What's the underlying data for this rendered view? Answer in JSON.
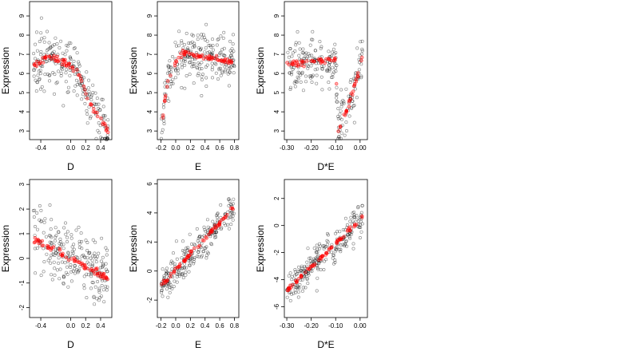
{
  "chart_data": [
    {
      "type": "scatter",
      "xlabel": "D",
      "ylabel": "Expression",
      "xlim": [
        -0.55,
        0.55
      ],
      "ylim": [
        2.55,
        9.75
      ],
      "xticks": [
        -0.4,
        0.0,
        0.2,
        0.4
      ],
      "xtick_labels": [
        "-0.4",
        "0.0",
        "0.2",
        "0.4"
      ],
      "yticks": [
        3,
        4,
        5,
        6,
        7,
        8,
        9
      ],
      "ytick_labels": [
        "3",
        "4",
        "5",
        "6",
        "7",
        "8",
        "9"
      ],
      "observed_color": "#000000",
      "fitted_color": "#ff0000",
      "trend": {
        "kind": "piecewise",
        "knots": [
          [
            -0.5,
            6.4
          ],
          [
            -0.3,
            6.9
          ],
          [
            -0.1,
            6.6
          ],
          [
            0.1,
            6.1
          ],
          [
            0.2,
            5.0
          ],
          [
            0.3,
            4.2
          ],
          [
            0.4,
            3.6
          ],
          [
            0.5,
            3.0
          ]
        ],
        "noise": 0.9
      }
    },
    {
      "type": "scatter",
      "xlabel": "E",
      "ylabel": "Expression",
      "xlim": [
        -0.25,
        0.86
      ],
      "ylim": [
        2.55,
        9.75
      ],
      "xticks": [
        -0.2,
        0.0,
        0.2,
        0.4,
        0.6,
        0.8
      ],
      "xtick_labels": [
        "-0.2",
        "0.0",
        "0.2",
        "0.4",
        "0.6",
        "0.8"
      ],
      "yticks": [
        3,
        4,
        5,
        6,
        7,
        8,
        9
      ],
      "ytick_labels": [
        "3",
        "4",
        "5",
        "6",
        "7",
        "8",
        "9"
      ],
      "observed_color": "#000000",
      "fitted_color": "#ff0000",
      "trend": {
        "kind": "piecewise",
        "knots": [
          [
            -0.2,
            2.8
          ],
          [
            -0.15,
            4.6
          ],
          [
            -0.1,
            5.8
          ],
          [
            0.0,
            6.5
          ],
          [
            0.1,
            7.1
          ],
          [
            0.3,
            6.9
          ],
          [
            0.8,
            6.6
          ]
        ],
        "noise": 0.9
      }
    },
    {
      "type": "scatter",
      "xlabel": "D*E",
      "ylabel": "Expression",
      "xlim": [
        -0.31,
        0.03
      ],
      "ylim": [
        2.55,
        9.75
      ],
      "xticks": [
        -0.3,
        -0.2,
        -0.1,
        0.0
      ],
      "xtick_labels": [
        "-0.30",
        "-0.20",
        "-0.10",
        "0.00"
      ],
      "yticks": [
        3,
        4,
        5,
        6,
        7,
        8,
        9
      ],
      "ytick_labels": [
        "3",
        "4",
        "5",
        "6",
        "7",
        "8",
        "9"
      ],
      "observed_color": "#000000",
      "fitted_color": "#ff0000",
      "trend": {
        "kind": "piecewise",
        "knots": [
          [
            -0.3,
            6.5
          ],
          [
            -0.2,
            6.6
          ],
          [
            -0.1,
            6.7
          ],
          [
            -0.09,
            3.0
          ],
          [
            -0.05,
            4.2
          ],
          [
            -0.02,
            5.5
          ],
          [
            0.0,
            6.3
          ],
          [
            0.01,
            7.1
          ]
        ],
        "noise": 0.9
      }
    },
    {
      "type": "scatter",
      "xlabel": "D",
      "ylabel": "Expression",
      "xlim": [
        -0.55,
        0.55
      ],
      "ylim": [
        -2.4,
        3.2
      ],
      "xticks": [
        -0.4,
        0.0,
        0.2,
        0.4
      ],
      "xtick_labels": [
        "-0.4",
        "0.0",
        "0.2",
        "0.4"
      ],
      "yticks": [
        -2,
        -1,
        0,
        1,
        2,
        3
      ],
      "ytick_labels": [
        "-2",
        "-1",
        "0",
        "1",
        "2",
        "3"
      ],
      "observed_color": "#000000",
      "fitted_color": "#ff0000",
      "trend": {
        "kind": "piecewise",
        "knots": [
          [
            -0.5,
            0.85
          ],
          [
            0.5,
            -0.85
          ]
        ],
        "noise": 0.85
      }
    },
    {
      "type": "scatter",
      "xlabel": "E",
      "ylabel": "Expression",
      "xlim": [
        -0.25,
        0.86
      ],
      "ylim": [
        -3.2,
        6.3
      ],
      "xticks": [
        -0.2,
        0.0,
        0.2,
        0.4,
        0.6,
        0.8
      ],
      "xtick_labels": [
        "-0.2",
        "0.0",
        "0.2",
        "0.4",
        "0.6",
        "0.8"
      ],
      "yticks": [
        -2,
        0,
        2,
        4,
        6
      ],
      "ytick_labels": [
        "-2",
        "0",
        "2",
        "4",
        "6"
      ],
      "observed_color": "#000000",
      "fitted_color": "#ff0000",
      "trend": {
        "kind": "piecewise",
        "knots": [
          [
            -0.2,
            -1.0
          ],
          [
            0.8,
            4.4
          ]
        ],
        "noise": 0.8
      }
    },
    {
      "type": "scatter",
      "xlabel": "D*E",
      "ylabel": "Expression",
      "xlim": [
        -0.31,
        0.03
      ],
      "ylim": [
        -6.8,
        3.4
      ],
      "xticks": [
        -0.3,
        -0.2,
        -0.1,
        0.0
      ],
      "xtick_labels": [
        "-0.30",
        "-0.20",
        "-0.10",
        "0.00"
      ],
      "yticks": [
        -6,
        -4,
        -2,
        0,
        2
      ],
      "ytick_labels": [
        "-6",
        "-4",
        "-2",
        "0",
        "2"
      ],
      "observed_color": "#000000",
      "fitted_color": "#ff0000",
      "trend": {
        "kind": "piecewise",
        "knots": [
          [
            -0.3,
            -4.8
          ],
          [
            0.01,
            0.6
          ]
        ],
        "noise": 0.8
      }
    }
  ]
}
